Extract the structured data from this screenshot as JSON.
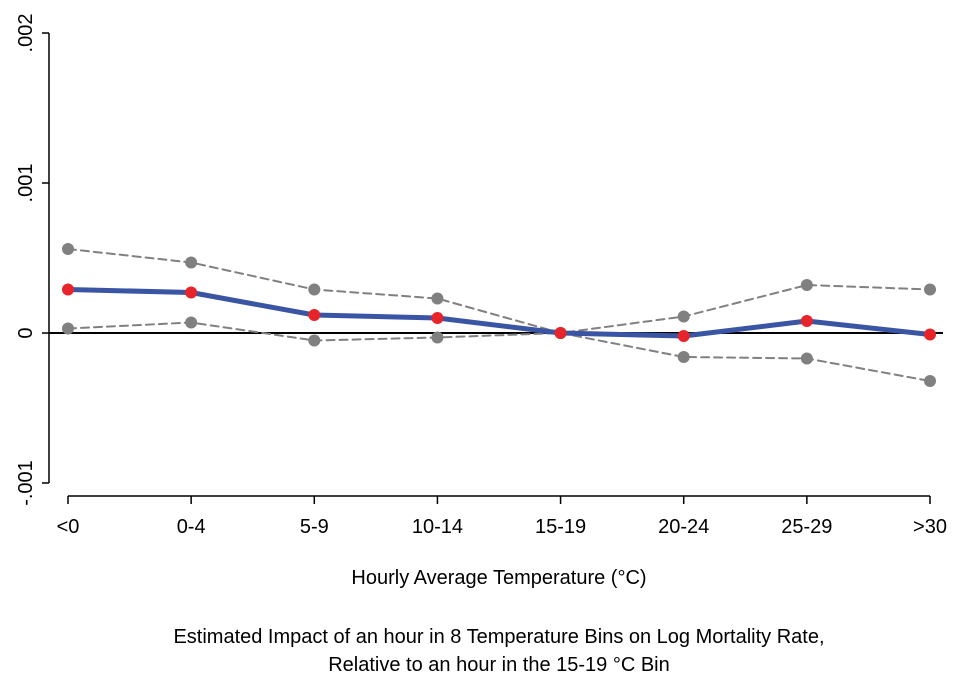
{
  "chart_data": {
    "type": "line",
    "categories": [
      "<0",
      "0-4",
      "5-9",
      "10-14",
      "15-19",
      "20-24",
      "25-29",
      ">30"
    ],
    "series": [
      {
        "role": "estimate",
        "values": [
          0.00029,
          0.00027,
          0.00012,
          0.0001,
          0.0,
          -2e-05,
          8e-05,
          -1e-05
        ],
        "line_color": "#3a55a4",
        "marker_color": "#e8242b",
        "line_style": "solid"
      },
      {
        "role": "upper-bound",
        "values": [
          0.00056,
          0.00047,
          0.00029,
          0.00023,
          0.0,
          0.00011,
          0.00032,
          0.00029
        ],
        "line_color": "#808080",
        "marker_color": "#808080",
        "line_style": "dashed"
      },
      {
        "role": "lower-bound",
        "values": [
          3e-05,
          7e-05,
          -5e-05,
          -3e-05,
          0.0,
          -0.00016,
          -0.00017,
          -0.00032
        ],
        "line_color": "#808080",
        "marker_color": "#808080",
        "line_style": "dashed"
      }
    ],
    "y_ticks": [
      {
        "value": -0.001,
        "label": "-.001"
      },
      {
        "value": 0,
        "label": "0"
      },
      {
        "value": 0.001,
        "label": ".001"
      },
      {
        "value": 0.002,
        "label": ".002"
      }
    ],
    "ylim": [
      -0.001,
      0.002
    ],
    "xlabel": "Hourly Average Temperature (°C)",
    "ylabel": "",
    "zero_reference_line": true,
    "grid": false,
    "legend": "none",
    "caption_lines": [
      "Estimated Impact of an hour in 8 Temperature Bins on Log Mortality Rate,",
      "Relative to an hour in the 15-19 °C Bin"
    ]
  }
}
